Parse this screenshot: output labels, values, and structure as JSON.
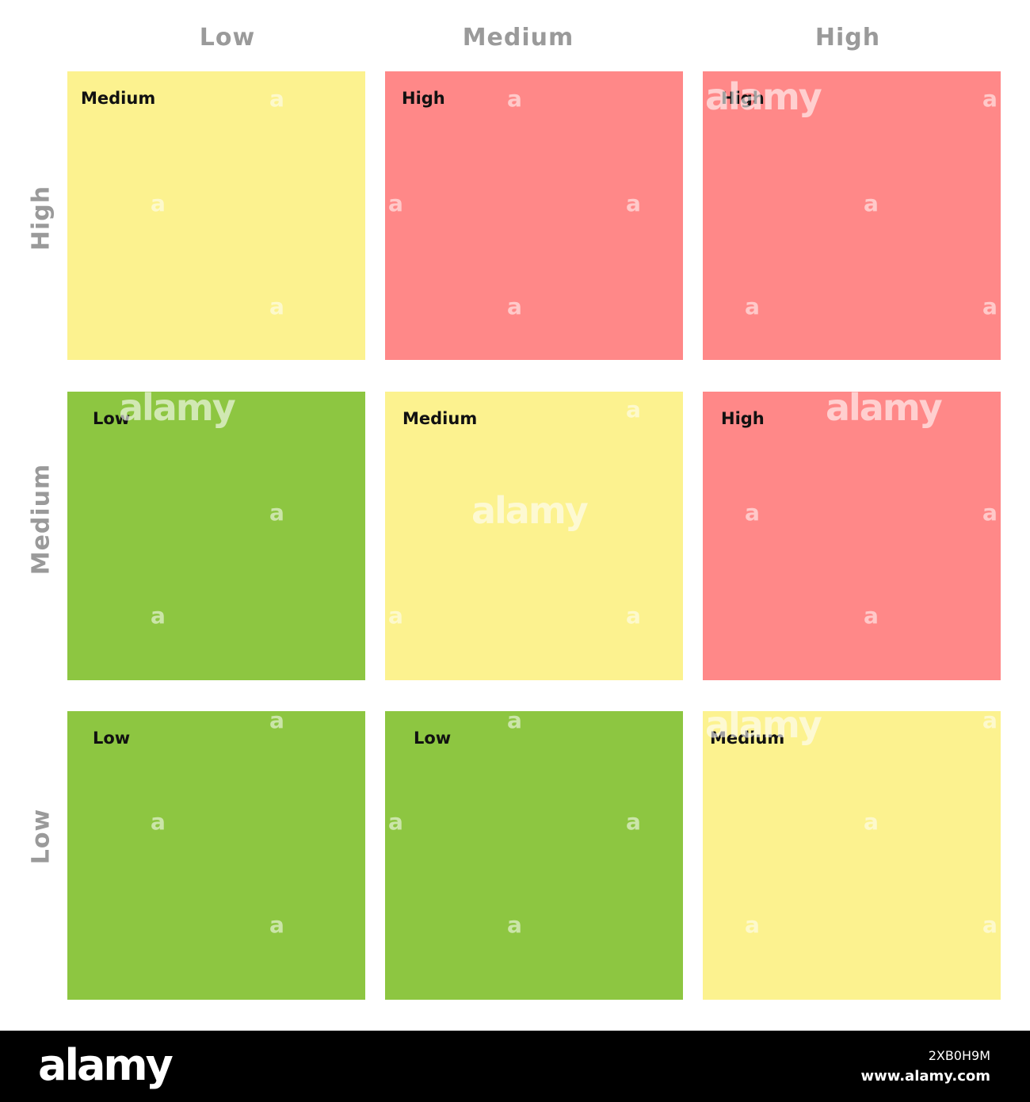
{
  "columns": [
    "Low",
    "Medium",
    "High"
  ],
  "rows": [
    "High",
    "Medium",
    "Low"
  ],
  "colors": {
    "Low": "#8dc641",
    "Medium": "#fcf28f",
    "High": "#ff8888"
  },
  "cells": [
    [
      "Medium",
      "High",
      "High"
    ],
    [
      "Low",
      "Medium",
      "High"
    ],
    [
      "Low",
      "Low",
      "Medium"
    ]
  ],
  "watermark": {
    "brand": "alamy",
    "image_id": "2XB0H9M",
    "url": "www.alamy.com"
  }
}
